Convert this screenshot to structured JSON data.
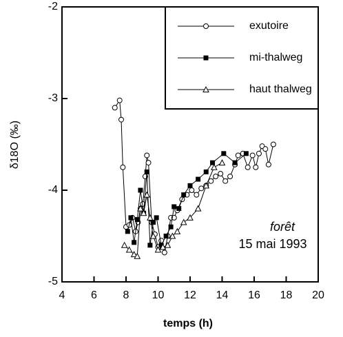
{
  "chart_data": {
    "type": "line",
    "xlabel": "temps (h)",
    "ylabel": "δ18O (‰)",
    "annotations": [
      "forêt",
      "15 mai 1993"
    ],
    "xlim": [
      4,
      20
    ],
    "xticks": [
      4,
      6,
      8,
      10,
      12,
      14,
      16,
      18,
      20
    ],
    "ylim": [
      -5,
      -2
    ],
    "yticks": [
      -5,
      -4,
      -3,
      -2
    ],
    "legend": "top-right",
    "series": [
      {
        "name": "exutoire",
        "color": "#000000",
        "marker": "circle",
        "x": [
          7.3,
          7.6,
          7.7,
          7.8,
          8.0,
          8.2,
          8.4,
          8.6,
          8.75,
          8.9,
          9.05,
          9.2,
          9.3,
          9.4,
          9.6,
          9.8,
          10.0,
          10.2,
          10.4,
          10.6,
          10.8,
          11.0,
          11.2,
          11.5,
          11.8,
          12.1,
          12.4,
          12.7,
          13.0,
          13.3,
          13.6,
          13.9,
          14.2,
          14.5,
          14.8,
          15.0,
          15.3,
          15.6,
          15.9,
          16.1,
          16.3,
          16.5,
          16.7,
          16.9,
          17.2
        ],
        "values": [
          -3.1,
          -3.02,
          -3.23,
          -3.75,
          -4.4,
          -4.38,
          -4.3,
          -4.45,
          -4.35,
          -4.2,
          -4.15,
          -3.85,
          -3.62,
          -3.7,
          -4.35,
          -4.48,
          -4.62,
          -4.55,
          -4.68,
          -4.5,
          -4.3,
          -4.3,
          -4.22,
          -4.1,
          -4.05,
          -4.0,
          -4.05,
          -3.98,
          -3.95,
          -3.9,
          -3.85,
          -3.82,
          -3.9,
          -3.85,
          -3.72,
          -3.62,
          -3.6,
          -3.75,
          -3.62,
          -3.75,
          -3.6,
          -3.52,
          -3.55,
          -3.72,
          -3.5
        ]
      },
      {
        "name": "mi-thalweg",
        "color": "#000000",
        "marker": "square",
        "x": [
          8.1,
          8.3,
          8.5,
          8.7,
          8.9,
          9.1,
          9.3,
          9.5,
          9.7,
          9.9,
          10.2,
          10.5,
          10.8,
          11.0,
          11.3,
          11.6,
          12.0,
          12.5,
          13.0,
          13.4,
          14.1,
          14.8,
          15.5
        ],
        "values": [
          -4.45,
          -4.3,
          -4.57,
          -4.32,
          -4.0,
          -4.25,
          -3.8,
          -4.6,
          -4.35,
          -4.3,
          -4.6,
          -4.5,
          -4.4,
          -4.18,
          -4.2,
          -4.05,
          -3.95,
          -3.88,
          -3.8,
          -3.7,
          -3.6,
          -3.7,
          -3.6
        ]
      },
      {
        "name": "haut thalweg",
        "color": "#000000",
        "marker": "triangle",
        "x": [
          7.9,
          8.2,
          8.5,
          8.7,
          8.9,
          9.1,
          9.3,
          9.5,
          9.7,
          10.0,
          10.3,
          10.6,
          10.9,
          11.2,
          11.6,
          12.0,
          12.5,
          13.0,
          13.5,
          14.0
        ],
        "values": [
          -4.6,
          -4.65,
          -4.7,
          -4.72,
          -4.2,
          -4.25,
          -4.05,
          -4.3,
          -4.5,
          -4.65,
          -4.62,
          -4.6,
          -4.5,
          -4.45,
          -4.35,
          -4.3,
          -4.2,
          -3.95,
          -3.75,
          -3.7
        ]
      }
    ]
  }
}
